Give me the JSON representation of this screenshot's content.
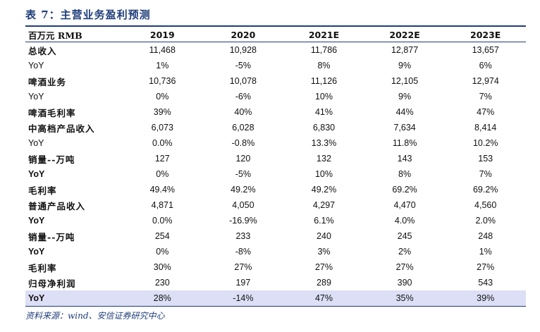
{
  "title": "表 7：主营业务盈利预测",
  "source": "资料来源：wind、安信证券研究中心",
  "header": [
    "百万元 RMB",
    "2019",
    "2020",
    "2021E",
    "2022E",
    "2023E"
  ],
  "rows": [
    {
      "label": "总收入",
      "values": [
        "11,468",
        "10,928",
        "11,786",
        "12,877",
        "13,657"
      ]
    },
    {
      "label": "YoY",
      "values": [
        "1%",
        "-5%",
        "8%",
        "9%",
        "6%"
      ]
    },
    {
      "label": "啤酒业务",
      "values": [
        "10,736",
        "10,078",
        "11,126",
        "12,105",
        "12,974"
      ]
    },
    {
      "label": "YoY",
      "values": [
        "0%",
        "-6%",
        "10%",
        "9%",
        "7%"
      ]
    },
    {
      "label": "啤酒毛利率",
      "values": [
        "39%",
        "40%",
        "41%",
        "44%",
        "47%"
      ]
    },
    {
      "label": "中高档产品收入",
      "values": [
        "6,073",
        "6,028",
        "6,830",
        "7,634",
        "8,414"
      ]
    },
    {
      "label": "YoY",
      "values": [
        "0.0%",
        "-0.8%",
        "13.3%",
        "11.8%",
        "10.2%"
      ]
    },
    {
      "label": "销量--万吨",
      "values": [
        "127",
        "120",
        "132",
        "143",
        "153"
      ]
    },
    {
      "label": "YoY",
      "values": [
        "0%",
        "-5%",
        "10%",
        "8%",
        "7%"
      ]
    },
    {
      "label": "毛利率",
      "values": [
        "49.4%",
        "49.2%",
        "49.2%",
        "69.2%",
        "69.2%"
      ]
    },
    {
      "label": "普通产品收入",
      "values": [
        "4,871",
        "4,050",
        "4,297",
        "4,470",
        "4,560"
      ]
    },
    {
      "label": "YoY",
      "values": [
        "0.0%",
        "-16.9%",
        "6.1%",
        "4.0%",
        "2.0%"
      ]
    },
    {
      "label": "销量--万吨",
      "values": [
        "254",
        "233",
        "240",
        "245",
        "248"
      ]
    },
    {
      "label": "YoY",
      "values": [
        "0%",
        "-8%",
        "3%",
        "2%",
        "1%"
      ]
    },
    {
      "label": "毛利率",
      "values": [
        "30%",
        "27%",
        "27%",
        "27%",
        "27%"
      ]
    },
    {
      "label": "归母净利润",
      "values": [
        "230",
        "197",
        "289",
        "390",
        "543"
      ]
    },
    {
      "label": "YoY",
      "values": [
        "28%",
        "-14%",
        "47%",
        "35%",
        "39%"
      ]
    }
  ]
}
